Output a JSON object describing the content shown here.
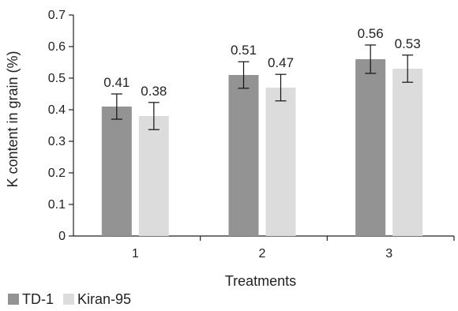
{
  "chart_data": {
    "type": "bar",
    "categories": [
      "1",
      "2",
      "3"
    ],
    "series": [
      {
        "name": "TD-1",
        "color": "#939393",
        "values": [
          0.41,
          0.51,
          0.56
        ],
        "errors": [
          0.04,
          0.042,
          0.045
        ],
        "labels": [
          "0.41",
          "0.51",
          "0.56"
        ]
      },
      {
        "name": "Kiran-95",
        "color": "#dcdcdc",
        "values": [
          0.38,
          0.47,
          0.53
        ],
        "errors": [
          0.043,
          0.042,
          0.043
        ],
        "labels": [
          "0.38",
          "0.47",
          "0.53"
        ]
      }
    ],
    "xlabel": "Treatments",
    "ylabel": "K content in grain (%)",
    "ylim": [
      0,
      0.7
    ],
    "yticks": [
      "0",
      "0.1",
      "0.2",
      "0.3",
      "0.4",
      "0.5",
      "0.6",
      "0.7"
    ],
    "grid": false,
    "legend": "bottom-left"
  }
}
